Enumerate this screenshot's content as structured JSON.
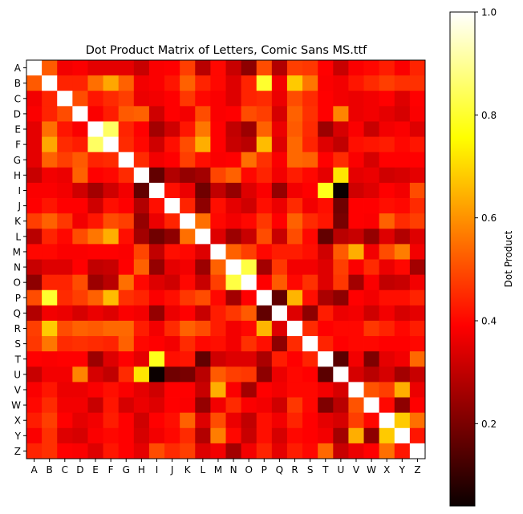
{
  "chart_data": {
    "type": "heatmap",
    "title": "Dot Product Matrix of Letters, Comic Sans MS.ttf",
    "x_labels": [
      "A",
      "B",
      "C",
      "D",
      "E",
      "F",
      "G",
      "H",
      "I",
      "J",
      "K",
      "L",
      "M",
      "N",
      "O",
      "P",
      "Q",
      "R",
      "S",
      "T",
      "U",
      "V",
      "W",
      "X",
      "Y",
      "Z"
    ],
    "y_labels": [
      "A",
      "B",
      "C",
      "D",
      "E",
      "F",
      "G",
      "H",
      "I",
      "J",
      "K",
      "L",
      "M",
      "N",
      "O",
      "P",
      "Q",
      "R",
      "S",
      "T",
      "U",
      "V",
      "W",
      "X",
      "Y",
      "Z"
    ],
    "colorbar": {
      "label": "Dot Product",
      "ticks": [
        "0.2",
        "0.4",
        "0.6",
        "0.8",
        "1.0"
      ],
      "tick_values": [
        0.2,
        0.4,
        0.6,
        0.8,
        1.0
      ],
      "range": [
        0.04,
        1.0
      ]
    },
    "colormap": "hot",
    "values": [
      [
        1.0,
        0.52,
        0.36,
        0.37,
        0.34,
        0.34,
        0.34,
        0.3,
        0.37,
        0.38,
        0.48,
        0.28,
        0.4,
        0.3,
        0.22,
        0.5,
        0.27,
        0.48,
        0.47,
        0.38,
        0.3,
        0.37,
        0.4,
        0.43,
        0.37,
        0.44
      ],
      [
        0.52,
        1.0,
        0.44,
        0.44,
        0.55,
        0.63,
        0.53,
        0.36,
        0.37,
        0.42,
        0.53,
        0.44,
        0.4,
        0.33,
        0.44,
        0.8,
        0.36,
        0.68,
        0.56,
        0.37,
        0.36,
        0.42,
        0.45,
        0.48,
        0.46,
        0.46
      ],
      [
        0.36,
        0.44,
        1.0,
        0.5,
        0.42,
        0.45,
        0.48,
        0.35,
        0.36,
        0.38,
        0.47,
        0.4,
        0.37,
        0.33,
        0.44,
        0.45,
        0.35,
        0.5,
        0.45,
        0.38,
        0.36,
        0.35,
        0.36,
        0.38,
        0.33,
        0.38
      ],
      [
        0.37,
        0.44,
        0.5,
        1.0,
        0.37,
        0.43,
        0.52,
        0.53,
        0.31,
        0.38,
        0.36,
        0.5,
        0.37,
        0.38,
        0.5,
        0.48,
        0.32,
        0.53,
        0.46,
        0.38,
        0.58,
        0.35,
        0.36,
        0.34,
        0.32,
        0.37
      ],
      [
        0.34,
        0.55,
        0.42,
        0.37,
        1.0,
        0.85,
        0.44,
        0.38,
        0.25,
        0.31,
        0.42,
        0.56,
        0.38,
        0.29,
        0.24,
        0.53,
        0.35,
        0.52,
        0.45,
        0.24,
        0.32,
        0.37,
        0.3,
        0.36,
        0.37,
        0.33
      ],
      [
        0.34,
        0.63,
        0.45,
        0.43,
        0.85,
        1.0,
        0.45,
        0.4,
        0.31,
        0.41,
        0.5,
        0.64,
        0.38,
        0.3,
        0.28,
        0.66,
        0.33,
        0.54,
        0.44,
        0.33,
        0.29,
        0.41,
        0.42,
        0.43,
        0.4,
        0.42
      ],
      [
        0.34,
        0.53,
        0.48,
        0.52,
        0.44,
        0.45,
        1.0,
        0.45,
        0.36,
        0.38,
        0.48,
        0.41,
        0.37,
        0.38,
        0.55,
        0.46,
        0.37,
        0.54,
        0.53,
        0.38,
        0.45,
        0.37,
        0.32,
        0.38,
        0.38,
        0.38
      ],
      [
        0.3,
        0.36,
        0.35,
        0.53,
        0.38,
        0.4,
        0.45,
        1.0,
        0.16,
        0.27,
        0.23,
        0.25,
        0.49,
        0.53,
        0.4,
        0.44,
        0.36,
        0.43,
        0.4,
        0.34,
        0.72,
        0.34,
        0.35,
        0.31,
        0.32,
        0.34
      ],
      [
        0.37,
        0.37,
        0.36,
        0.31,
        0.25,
        0.31,
        0.36,
        0.16,
        1.0,
        0.41,
        0.35,
        0.18,
        0.29,
        0.23,
        0.33,
        0.37,
        0.23,
        0.36,
        0.38,
        0.78,
        0.04,
        0.31,
        0.33,
        0.38,
        0.36,
        0.5
      ],
      [
        0.38,
        0.42,
        0.38,
        0.38,
        0.31,
        0.41,
        0.38,
        0.27,
        0.41,
        1.0,
        0.44,
        0.22,
        0.41,
        0.34,
        0.31,
        0.41,
        0.35,
        0.45,
        0.36,
        0.41,
        0.18,
        0.38,
        0.39,
        0.41,
        0.4,
        0.45
      ],
      [
        0.48,
        0.53,
        0.47,
        0.36,
        0.42,
        0.5,
        0.48,
        0.23,
        0.35,
        0.44,
        1.0,
        0.55,
        0.4,
        0.36,
        0.4,
        0.47,
        0.38,
        0.53,
        0.45,
        0.42,
        0.19,
        0.39,
        0.37,
        0.53,
        0.45,
        0.48
      ],
      [
        0.28,
        0.44,
        0.4,
        0.5,
        0.56,
        0.64,
        0.41,
        0.25,
        0.18,
        0.22,
        0.55,
        1.0,
        0.33,
        0.24,
        0.3,
        0.5,
        0.3,
        0.5,
        0.4,
        0.16,
        0.28,
        0.3,
        0.23,
        0.33,
        0.27,
        0.33
      ],
      [
        0.4,
        0.4,
        0.37,
        0.37,
        0.38,
        0.38,
        0.37,
        0.49,
        0.29,
        0.41,
        0.4,
        0.33,
        1.0,
        0.53,
        0.48,
        0.4,
        0.43,
        0.43,
        0.41,
        0.31,
        0.52,
        0.64,
        0.36,
        0.5,
        0.57,
        0.36
      ],
      [
        0.3,
        0.33,
        0.33,
        0.38,
        0.29,
        0.3,
        0.38,
        0.53,
        0.23,
        0.34,
        0.36,
        0.24,
        0.53,
        1.0,
        0.82,
        0.25,
        0.47,
        0.36,
        0.36,
        0.33,
        0.48,
        0.37,
        0.45,
        0.35,
        0.4,
        0.25
      ],
      [
        0.22,
        0.44,
        0.44,
        0.5,
        0.24,
        0.28,
        0.55,
        0.4,
        0.33,
        0.31,
        0.4,
        0.3,
        0.48,
        0.82,
        1.0,
        0.38,
        0.52,
        0.4,
        0.46,
        0.33,
        0.47,
        0.25,
        0.37,
        0.29,
        0.3,
        0.36
      ],
      [
        0.5,
        0.8,
        0.45,
        0.48,
        0.53,
        0.66,
        0.46,
        0.44,
        0.37,
        0.41,
        0.47,
        0.5,
        0.4,
        0.25,
        0.38,
        1.0,
        0.16,
        0.65,
        0.41,
        0.26,
        0.22,
        0.38,
        0.36,
        0.41,
        0.41,
        0.44
      ],
      [
        0.27,
        0.36,
        0.35,
        0.32,
        0.35,
        0.33,
        0.37,
        0.36,
        0.23,
        0.35,
        0.38,
        0.3,
        0.43,
        0.47,
        0.52,
        0.16,
        1.0,
        0.33,
        0.22,
        0.43,
        0.35,
        0.36,
        0.31,
        0.36,
        0.32,
        0.34
      ],
      [
        0.48,
        0.68,
        0.5,
        0.53,
        0.52,
        0.54,
        0.54,
        0.43,
        0.36,
        0.45,
        0.53,
        0.5,
        0.43,
        0.36,
        0.4,
        0.65,
        0.33,
        1.0,
        0.45,
        0.38,
        0.4,
        0.4,
        0.47,
        0.44,
        0.4,
        0.43
      ],
      [
        0.47,
        0.56,
        0.45,
        0.46,
        0.45,
        0.44,
        0.53,
        0.4,
        0.38,
        0.36,
        0.45,
        0.4,
        0.41,
        0.36,
        0.46,
        0.41,
        0.22,
        0.45,
        1.0,
        0.44,
        0.38,
        0.4,
        0.4,
        0.38,
        0.38,
        0.4
      ],
      [
        0.38,
        0.37,
        0.38,
        0.38,
        0.24,
        0.33,
        0.38,
        0.34,
        0.78,
        0.41,
        0.42,
        0.16,
        0.31,
        0.33,
        0.33,
        0.26,
        0.43,
        0.38,
        0.44,
        1.0,
        0.15,
        0.36,
        0.2,
        0.34,
        0.36,
        0.54
      ],
      [
        0.3,
        0.36,
        0.36,
        0.58,
        0.32,
        0.29,
        0.45,
        0.72,
        0.04,
        0.18,
        0.19,
        0.28,
        0.52,
        0.48,
        0.47,
        0.22,
        0.35,
        0.4,
        0.38,
        0.15,
        1.0,
        0.32,
        0.28,
        0.32,
        0.25,
        0.3
      ],
      [
        0.37,
        0.42,
        0.35,
        0.35,
        0.37,
        0.41,
        0.37,
        0.34,
        0.31,
        0.38,
        0.39,
        0.3,
        0.64,
        0.37,
        0.25,
        0.38,
        0.36,
        0.4,
        0.4,
        0.36,
        0.32,
        1.0,
        0.51,
        0.48,
        0.64,
        0.35
      ],
      [
        0.4,
        0.45,
        0.36,
        0.36,
        0.3,
        0.42,
        0.32,
        0.35,
        0.33,
        0.39,
        0.37,
        0.23,
        0.36,
        0.45,
        0.37,
        0.36,
        0.31,
        0.47,
        0.4,
        0.2,
        0.28,
        0.51,
        1.0,
        0.4,
        0.22,
        0.38
      ],
      [
        0.43,
        0.48,
        0.38,
        0.34,
        0.36,
        0.43,
        0.38,
        0.31,
        0.38,
        0.41,
        0.53,
        0.33,
        0.5,
        0.35,
        0.29,
        0.41,
        0.36,
        0.44,
        0.38,
        0.34,
        0.32,
        0.48,
        0.4,
        1.0,
        0.68,
        0.55
      ],
      [
        0.37,
        0.46,
        0.33,
        0.32,
        0.37,
        0.4,
        0.38,
        0.32,
        0.36,
        0.4,
        0.45,
        0.27,
        0.57,
        0.4,
        0.3,
        0.41,
        0.32,
        0.4,
        0.38,
        0.36,
        0.25,
        0.64,
        0.22,
        0.68,
        1.0,
        0.42
      ],
      [
        0.44,
        0.46,
        0.38,
        0.37,
        0.33,
        0.42,
        0.38,
        0.34,
        0.5,
        0.45,
        0.48,
        0.33,
        0.36,
        0.25,
        0.36,
        0.44,
        0.34,
        0.43,
        0.4,
        0.54,
        0.3,
        0.35,
        0.38,
        0.55,
        0.42,
        1.0
      ]
    ]
  }
}
